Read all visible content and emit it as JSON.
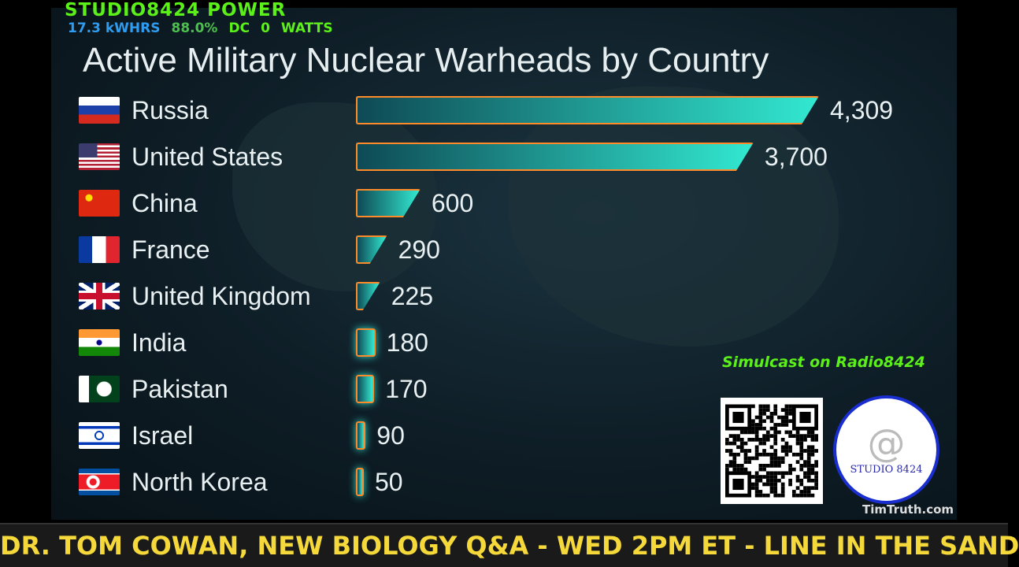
{
  "overlay": {
    "title": "STUDIO8424 POWER",
    "stats": [
      {
        "text": "17.3 kWHRS",
        "color": "#2e9cf0"
      },
      {
        "text": "88.0%",
        "color": "#4cc04c"
      },
      {
        "text": "DC",
        "color": "#5cf01a"
      },
      {
        "text": "0",
        "color": "#5cf01a"
      },
      {
        "text": "WATTS",
        "color": "#5cf01a"
      }
    ]
  },
  "simulcast": "Simulcast on Radio8424",
  "logo": {
    "text": "STUDIO 8424",
    "symbol": "@"
  },
  "watermark": "TimTruth.com",
  "ticker": "DR. TOM COWAN, NEW BIOLOGY Q&A - WED 2PM ET - LINE IN THE SAND",
  "chart_data": {
    "type": "bar",
    "orientation": "horizontal",
    "title": "Active Military Nuclear Warheads by Country",
    "categories": [
      "Russia",
      "United States",
      "China",
      "France",
      "United Kingdom",
      "India",
      "Pakistan",
      "Israel",
      "North Korea"
    ],
    "values": [
      4309,
      3700,
      600,
      290,
      225,
      180,
      170,
      90,
      50
    ],
    "value_labels": [
      "4,309",
      "3,700",
      "600",
      "290",
      "225",
      "180",
      "170",
      "90",
      "50"
    ],
    "flags": [
      "russia-flag",
      "usa-flag",
      "china-flag",
      "france-flag",
      "uk-flag",
      "india-flag",
      "pakistan-flag",
      "israel-flag",
      "north-korea-flag"
    ],
    "bar_color": "#32e8d0",
    "edge_color": "#ff8a2a",
    "grid": false
  }
}
